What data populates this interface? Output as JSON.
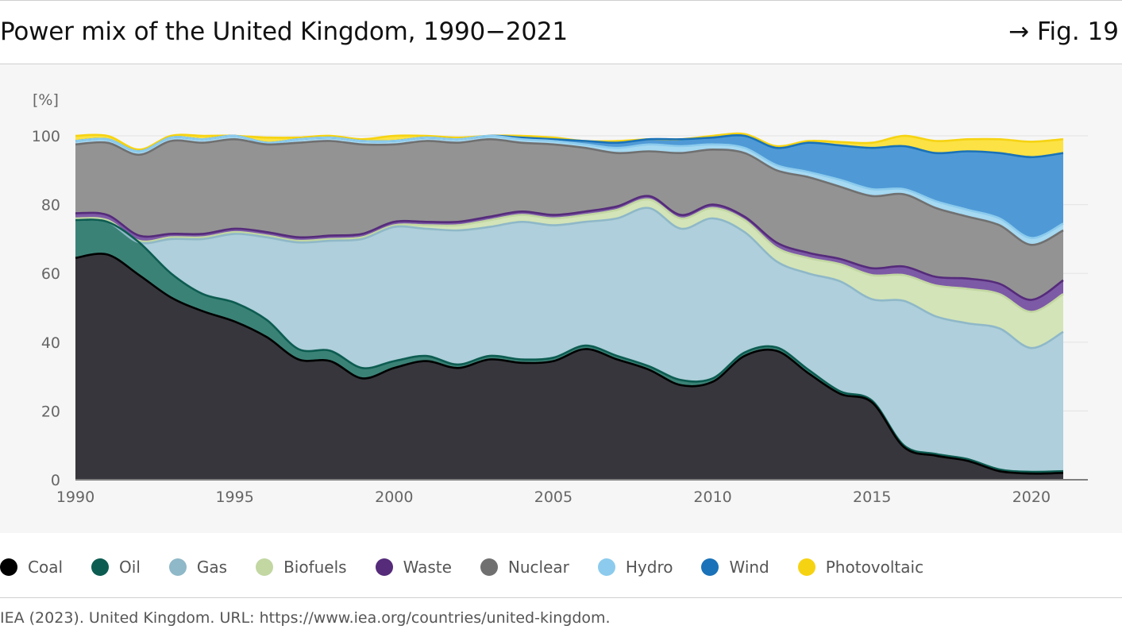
{
  "header": {
    "title": "Power mix of the United Kingdom, 1990−2021",
    "fig_ref": "→ Fig. 19"
  },
  "chart_data": {
    "type": "area",
    "stacked": true,
    "ylabel": "[%]",
    "ylim": [
      0,
      100
    ],
    "yticks": [
      0,
      20,
      40,
      60,
      80,
      100
    ],
    "xticks": [
      1990,
      1995,
      2000,
      2005,
      2010,
      2015,
      2020
    ],
    "grid": true,
    "legend_position": "bottom",
    "x": [
      1990,
      1991,
      1992,
      1993,
      1994,
      1995,
      1996,
      1997,
      1998,
      1999,
      2000,
      2001,
      2002,
      2003,
      2004,
      2005,
      2006,
      2007,
      2008,
      2009,
      2010,
      2011,
      2012,
      2013,
      2014,
      2015,
      2016,
      2017,
      2018,
      2019,
      2020,
      2021
    ],
    "series": [
      {
        "name": "Coal",
        "color": "#36363c",
        "outline": "#000000",
        "values": [
          64.5,
          65.5,
          59.5,
          53,
          49,
          46,
          41.5,
          35,
          34.5,
          29.5,
          32.5,
          34.5,
          32.5,
          35,
          34,
          34.5,
          38,
          35,
          32,
          27.5,
          28.5,
          36,
          37.5,
          31,
          25,
          22.5,
          9.5,
          7,
          5.5,
          2.5,
          1.8,
          2
        ]
      },
      {
        "name": "Oil",
        "color": "#3b8276",
        "outline": "#0d5c51",
        "values": [
          11,
          9.5,
          9.5,
          7,
          5,
          5.5,
          5,
          3,
          3,
          3,
          2,
          1.5,
          1,
          1,
          1,
          1,
          1,
          1,
          1,
          1.5,
          1,
          1,
          1,
          1,
          0.7,
          0.5,
          0.5,
          0.5,
          0.5,
          0.5,
          0.5,
          0.5
        ]
      },
      {
        "name": "Gas",
        "color": "#aecfdb",
        "outline": "#8fb8c8",
        "values": [
          0,
          0,
          0,
          10,
          16,
          20,
          24,
          31,
          32,
          37.5,
          39,
          37,
          39,
          37.5,
          40,
          38.5,
          36,
          40,
          46,
          44,
          46.5,
          35,
          25,
          28,
          32,
          29.5,
          42,
          40,
          39.5,
          41,
          36,
          40.5
        ]
      },
      {
        "name": "Biofuels",
        "color": "#d3e4b8",
        "outline": "#c2d7a2",
        "values": [
          0.5,
          0.5,
          0.5,
          0.5,
          0.5,
          0.5,
          0.5,
          0.5,
          0.5,
          0.5,
          0.5,
          1,
          1.5,
          2,
          2,
          2,
          2,
          2.5,
          2.5,
          3,
          3,
          3.5,
          4,
          4.5,
          5,
          7,
          7.5,
          9,
          10,
          10,
          10.5,
          11
        ]
      },
      {
        "name": "Waste",
        "color": "#7d5aa6",
        "outline": "#552b7a",
        "values": [
          1.5,
          1.5,
          1.5,
          1,
          1,
          1,
          1,
          1,
          1,
          1,
          1,
          1,
          1,
          1,
          1,
          1,
          1,
          1,
          1,
          1,
          1,
          1,
          1.5,
          1.5,
          1.5,
          2,
          2.5,
          2.5,
          3,
          3,
          3.5,
          4
        ]
      },
      {
        "name": "Nuclear",
        "color": "#939393",
        "outline": "#707070",
        "values": [
          20,
          21,
          23.5,
          27,
          26.5,
          26,
          25.5,
          27.5,
          27.5,
          26,
          22.5,
          23.5,
          23,
          22.5,
          20,
          20.5,
          18.5,
          15.5,
          13,
          18,
          16,
          18.5,
          21,
          22,
          21,
          21,
          21,
          20,
          18,
          17,
          16,
          14.5
        ]
      },
      {
        "name": "Hydro",
        "color": "#a6d9f2",
        "outline": "#8ccbed",
        "values": [
          1,
          1,
          1,
          1,
          1,
          1,
          0.5,
          1,
          1,
          1,
          1,
          1,
          1,
          1,
          1,
          1,
          1,
          1.5,
          2,
          2,
          1.5,
          1.5,
          1.5,
          1.5,
          2,
          2,
          1.5,
          2,
          2,
          2,
          2,
          2
        ]
      },
      {
        "name": "Wind",
        "color": "#4f9ad6",
        "outline": "#1a72b8",
        "values": [
          0,
          0,
          0,
          0,
          0,
          0,
          0,
          0,
          0,
          0,
          0,
          0,
          0,
          0,
          0.5,
          0.5,
          1,
          1.5,
          1.5,
          2,
          2,
          3.5,
          5,
          8.5,
          10,
          12,
          12.5,
          14,
          17,
          19,
          23.5,
          20.5
        ]
      },
      {
        "name": "Photovoltaic",
        "color": "#fce244",
        "outline": "#f6d312",
        "values": [
          1.5,
          1,
          0.5,
          0.5,
          1,
          0,
          1.5,
          0.5,
          0.5,
          0.5,
          1.5,
          0.5,
          0.5,
          0,
          0.5,
          0.5,
          0,
          0.5,
          0,
          0,
          0.5,
          0.5,
          0.5,
          0.5,
          1,
          1.5,
          3,
          3.5,
          3.5,
          4,
          4.5,
          4
        ]
      }
    ]
  },
  "source": "IEA (2023). United Kingdom. URL: https://www.iea.org/countries/united-kingdom."
}
